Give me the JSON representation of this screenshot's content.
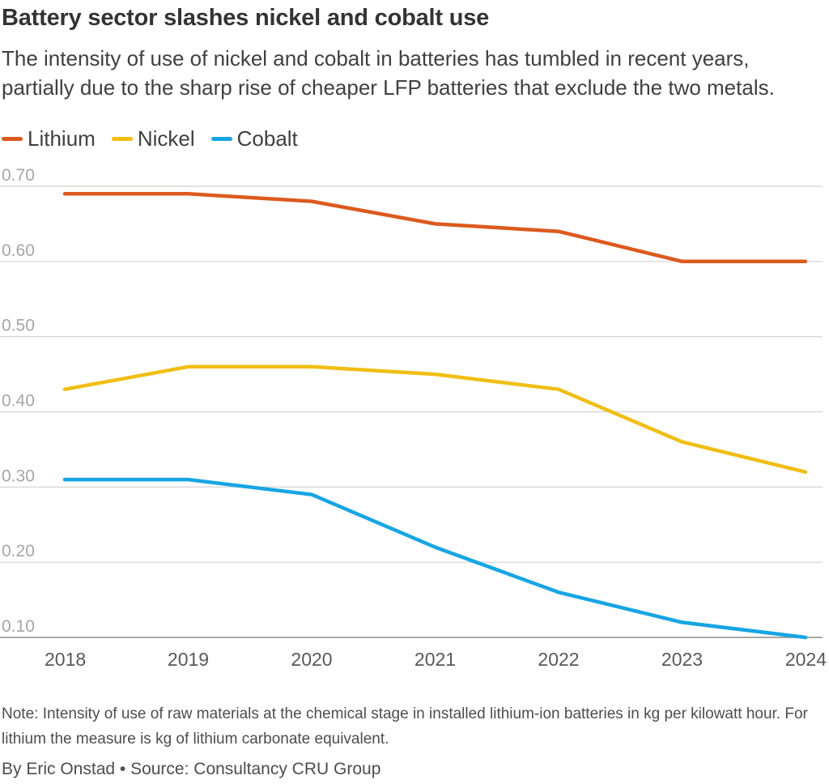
{
  "title": "Battery sector slashes nickel and cobalt use",
  "subtitle": "The intensity of use of nickel and cobalt in batteries has tumbled in recent years, partially due to the sharp rise of cheaper LFP batteries that exclude the two metals.",
  "note": "Note: Intensity of use of raw materials at the chemical stage in installed lithium-ion batteries in kg per kilowatt hour. For lithium the measure is kg of lithium carbonate equivalent.",
  "byline": "By Eric Onstad • Source: Consultancy CRU Group",
  "chart_data": {
    "type": "line",
    "x": [
      2018,
      2019,
      2020,
      2021,
      2022,
      2023,
      2024
    ],
    "x_tick_labels": [
      "2018",
      "2019",
      "2020",
      "2021",
      "2022",
      "2023",
      "2024"
    ],
    "y_ticks": [
      0.1,
      0.2,
      0.3,
      0.4,
      0.5,
      0.6,
      0.7
    ],
    "y_tick_labels": [
      "0.10",
      "0.20",
      "0.30",
      "0.40",
      "0.50",
      "0.60",
      "0.70"
    ],
    "ylim": [
      0.1,
      0.7
    ],
    "grid": true,
    "legend_position": "top-left",
    "series": [
      {
        "name": "Lithium",
        "color": "#dc5a1e",
        "values": [
          0.69,
          0.69,
          0.68,
          0.65,
          0.64,
          0.6,
          0.6
        ]
      },
      {
        "name": "Nickel",
        "color": "#f0be14",
        "values": [
          0.43,
          0.46,
          0.46,
          0.45,
          0.43,
          0.36,
          0.32
        ]
      },
      {
        "name": "Cobalt",
        "color": "#17a5e3",
        "values": [
          0.31,
          0.31,
          0.29,
          0.22,
          0.16,
          0.12,
          0.1
        ]
      }
    ]
  }
}
